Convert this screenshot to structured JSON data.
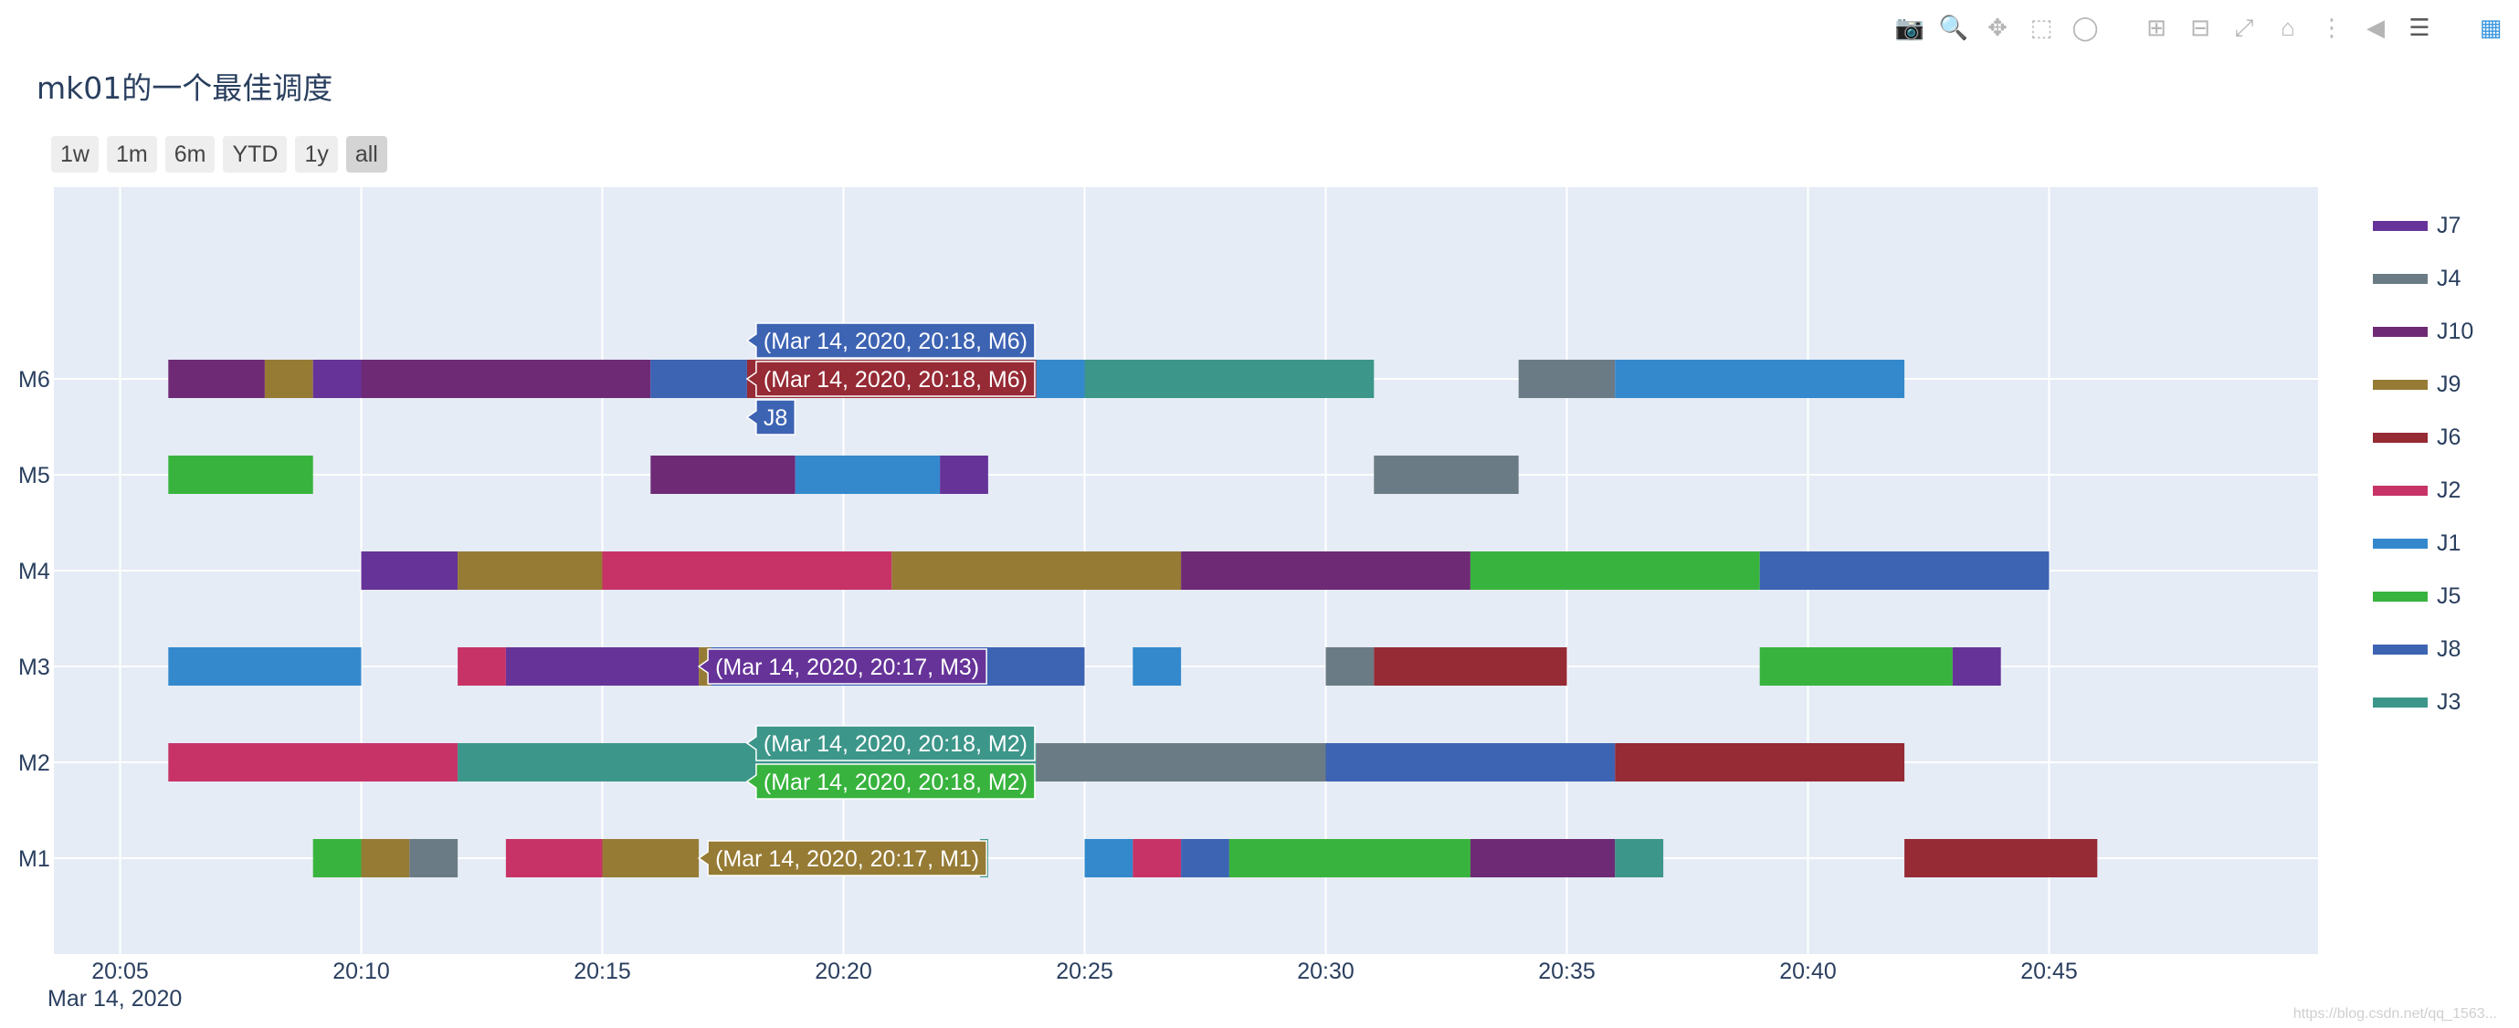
{
  "title": "mk01的一个最佳调度",
  "toolbar": [
    {
      "name": "camera-icon",
      "glyph": "📷",
      "state": "normal"
    },
    {
      "name": "zoom-icon",
      "glyph": "🔍",
      "state": "active"
    },
    {
      "name": "pan-icon",
      "glyph": "✥",
      "state": "normal"
    },
    {
      "name": "box-select-icon",
      "glyph": "⬚",
      "state": "normal"
    },
    {
      "name": "lasso-select-icon",
      "glyph": "◯",
      "state": "normal"
    },
    {
      "name": "zoom-in-icon",
      "glyph": "⊞",
      "state": "normal"
    },
    {
      "name": "zoom-out-icon",
      "glyph": "⊟",
      "state": "normal"
    },
    {
      "name": "autoscale-icon",
      "glyph": "⤢",
      "state": "normal"
    },
    {
      "name": "reset-axes-icon",
      "glyph": "⌂",
      "state": "normal"
    },
    {
      "name": "spike-lines-icon",
      "glyph": "⋮",
      "state": "normal"
    },
    {
      "name": "hover-closest-icon",
      "glyph": "◀",
      "state": "normal"
    },
    {
      "name": "hover-compare-icon",
      "glyph": "☰",
      "state": "active"
    },
    {
      "name": "plotly-logo-icon",
      "glyph": "▦",
      "state": "brand"
    }
  ],
  "range_buttons": [
    "1w",
    "1m",
    "6m",
    "YTD",
    "1y",
    "all"
  ],
  "range_selected": "all",
  "watermark": "https://blog.csdn.net/qq_1563...",
  "chart_data": {
    "type": "gantt",
    "title": "mk01的一个最佳调度",
    "x_axis": {
      "type": "date",
      "range": [
        "2020-03-14 20:03:45",
        "2020-03-14 20:48:30"
      ],
      "ticks": [
        "20:05",
        "20:10",
        "20:15",
        "20:20",
        "20:25",
        "20:30",
        "20:35",
        "20:40",
        "20:45"
      ],
      "tick_minutes": [
        5,
        10,
        15,
        20,
        25,
        30,
        35,
        40,
        45
      ],
      "date_label": "Mar 14, 2020",
      "grid": true
    },
    "y_axis": {
      "categories": [
        "M1",
        "M2",
        "M3",
        "M4",
        "M5",
        "M6"
      ],
      "grid": true
    },
    "legend": {
      "position": "right",
      "items": [
        {
          "name": "J7",
          "color": "#663399"
        },
        {
          "name": "J4",
          "color": "#6b7b85"
        },
        {
          "name": "J10",
          "color": "#6e2a75"
        },
        {
          "name": "J9",
          "color": "#967b35"
        },
        {
          "name": "J6",
          "color": "#962a35"
        },
        {
          "name": "J2",
          "color": "#c73367"
        },
        {
          "name": "J1",
          "color": "#3489cd"
        },
        {
          "name": "J5",
          "color": "#38b43e"
        },
        {
          "name": "J8",
          "color": "#3d63b3"
        },
        {
          "name": "J3",
          "color": "#3d968a"
        }
      ]
    },
    "tasks": [
      {
        "machine": "M6",
        "job": "J10",
        "start": "20:06",
        "end": "20:08"
      },
      {
        "machine": "M6",
        "job": "J9",
        "start": "20:08",
        "end": "20:09"
      },
      {
        "machine": "M6",
        "job": "J7",
        "start": "20:09",
        "end": "20:10"
      },
      {
        "machine": "M6",
        "job": "J10",
        "start": "20:10",
        "end": "20:16"
      },
      {
        "machine": "M6",
        "job": "J8",
        "start": "20:16",
        "end": "20:18"
      },
      {
        "machine": "M6",
        "job": "J6",
        "start": "20:18",
        "end": "20:24"
      },
      {
        "machine": "M6",
        "job": "J1",
        "start": "20:24",
        "end": "20:25"
      },
      {
        "machine": "M6",
        "job": "J3",
        "start": "20:25",
        "end": "20:31"
      },
      {
        "machine": "M6",
        "job": "J4",
        "start": "20:34",
        "end": "20:36"
      },
      {
        "machine": "M6",
        "job": "J1",
        "start": "20:36",
        "end": "20:42"
      },
      {
        "machine": "M5",
        "job": "J5",
        "start": "20:06",
        "end": "20:09"
      },
      {
        "machine": "M5",
        "job": "J10",
        "start": "20:16",
        "end": "20:19"
      },
      {
        "machine": "M5",
        "job": "J1",
        "start": "20:19",
        "end": "20:22"
      },
      {
        "machine": "M5",
        "job": "J7",
        "start": "20:22",
        "end": "20:23"
      },
      {
        "machine": "M5",
        "job": "J4",
        "start": "20:31",
        "end": "20:34"
      },
      {
        "machine": "M4",
        "job": "J7",
        "start": "20:10",
        "end": "20:12"
      },
      {
        "machine": "M4",
        "job": "J9",
        "start": "20:12",
        "end": "20:15"
      },
      {
        "machine": "M4",
        "job": "J2",
        "start": "20:15",
        "end": "20:21"
      },
      {
        "machine": "M4",
        "job": "J9",
        "start": "20:21",
        "end": "20:27"
      },
      {
        "machine": "M4",
        "job": "J10",
        "start": "20:27",
        "end": "20:33"
      },
      {
        "machine": "M4",
        "job": "J5",
        "start": "20:33",
        "end": "20:39"
      },
      {
        "machine": "M4",
        "job": "J8",
        "start": "20:39",
        "end": "20:45"
      },
      {
        "machine": "M3",
        "job": "J1",
        "start": "20:06",
        "end": "20:10"
      },
      {
        "machine": "M3",
        "job": "J2",
        "start": "20:12",
        "end": "20:13"
      },
      {
        "machine": "M3",
        "job": "J7",
        "start": "20:13",
        "end": "20:17"
      },
      {
        "machine": "M3",
        "job": "J9",
        "start": "20:17",
        "end": "20:17:15"
      },
      {
        "machine": "M3",
        "job": "J8",
        "start": "20:17:15",
        "end": "20:25"
      },
      {
        "machine": "M3",
        "job": "J1",
        "start": "20:26",
        "end": "20:27"
      },
      {
        "machine": "M3",
        "job": "J4",
        "start": "20:30",
        "end": "20:31"
      },
      {
        "machine": "M3",
        "job": "J6",
        "start": "20:31",
        "end": "20:35"
      },
      {
        "machine": "M3",
        "job": "J5",
        "start": "20:39",
        "end": "20:43"
      },
      {
        "machine": "M3",
        "job": "J7",
        "start": "20:43",
        "end": "20:44"
      },
      {
        "machine": "M2",
        "job": "J2",
        "start": "20:06",
        "end": "20:12"
      },
      {
        "machine": "M2",
        "job": "J3",
        "start": "20:12",
        "end": "20:24"
      },
      {
        "machine": "M2",
        "job": "J4",
        "start": "20:24",
        "end": "20:30"
      },
      {
        "machine": "M2",
        "job": "J8",
        "start": "20:30",
        "end": "20:36"
      },
      {
        "machine": "M2",
        "job": "J6",
        "start": "20:36",
        "end": "20:42"
      },
      {
        "machine": "M1",
        "job": "J5",
        "start": "20:09",
        "end": "20:10"
      },
      {
        "machine": "M1",
        "job": "J9",
        "start": "20:10",
        "end": "20:11"
      },
      {
        "machine": "M1",
        "job": "J4",
        "start": "20:11",
        "end": "20:12"
      },
      {
        "machine": "M1",
        "job": "J2",
        "start": "20:13",
        "end": "20:15"
      },
      {
        "machine": "M1",
        "job": "J9",
        "start": "20:15",
        "end": "20:17"
      },
      {
        "machine": "M1",
        "job": "J3",
        "start": "20:22:50",
        "end": "20:23"
      },
      {
        "machine": "M1",
        "job": "J1",
        "start": "20:25",
        "end": "20:26"
      },
      {
        "machine": "M1",
        "job": "J2",
        "start": "20:26",
        "end": "20:27"
      },
      {
        "machine": "M1",
        "job": "J8",
        "start": "20:27",
        "end": "20:28"
      },
      {
        "machine": "M1",
        "job": "J5",
        "start": "20:28",
        "end": "20:33"
      },
      {
        "machine": "M1",
        "job": "J10",
        "start": "20:33",
        "end": "20:36"
      },
      {
        "machine": "M1",
        "job": "J3",
        "start": "20:36",
        "end": "20:37"
      },
      {
        "machine": "M1",
        "job": "J6",
        "start": "20:42",
        "end": "20:46"
      }
    ],
    "hover_labels": [
      {
        "text": "(Mar 14, 2020, 20:18, M6)",
        "color": "#3d63b3",
        "machine": "M6",
        "at": "20:18",
        "side": "right",
        "stack": -1
      },
      {
        "text": "(Mar 14, 2020, 20:18, M6)",
        "color": "#962a35",
        "machine": "M6",
        "at": "20:18",
        "side": "right",
        "stack": 0
      },
      {
        "text": "J8",
        "color": "#3d63b3",
        "machine": "M6",
        "at": "20:18",
        "side": "right",
        "stack": 1
      },
      {
        "text": "(Mar 14, 2020, 20:17, M3)",
        "color": "#663399",
        "machine": "M3",
        "at": "20:17",
        "side": "right",
        "stack": 0
      },
      {
        "text": "(Mar 14, 2020, 20:18, M2)",
        "color": "#3d968a",
        "machine": "M2",
        "at": "20:18",
        "side": "right",
        "stack": -0.5
      },
      {
        "text": "(Mar 14, 2020, 20:18, M2)",
        "color": "#38b43e",
        "machine": "M2",
        "at": "20:18",
        "side": "right",
        "stack": 0.5
      },
      {
        "text": "(Mar 14, 2020, 20:17, M1)",
        "color": "#967b35",
        "machine": "M1",
        "at": "20:17",
        "side": "right",
        "stack": 0
      }
    ]
  }
}
